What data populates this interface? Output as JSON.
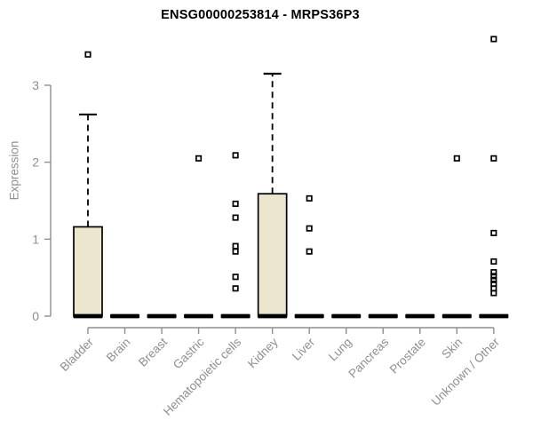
{
  "figure": {
    "title": "ENSG00000253814 - MRPS36P3",
    "ylabel": "Expression"
  },
  "chart_data": {
    "type": "boxplot",
    "title": "ENSG00000253814 - MRPS36P3",
    "xlabel": "",
    "ylabel": "Expression",
    "ylim": [
      0,
      3.7
    ],
    "yticks": [
      0,
      1,
      2,
      3
    ],
    "grid": false,
    "legend": "none",
    "categories": [
      "Bladder",
      "Brain",
      "Breast",
      "Gastric",
      "Hematopoietic cells",
      "Kidney",
      "Liver",
      "Lung",
      "Pancreas",
      "Prostate",
      "Skin",
      "Unknown / Other"
    ],
    "boxes": [
      {
        "category": "Bladder",
        "q1": 0,
        "median": 0,
        "q3": 1.16,
        "whisker_low": 0,
        "whisker_high": 2.62,
        "outliers": [
          3.4
        ]
      },
      {
        "category": "Brain",
        "q1": 0,
        "median": 0,
        "q3": 0,
        "whisker_low": 0,
        "whisker_high": 0,
        "outliers": []
      },
      {
        "category": "Breast",
        "q1": 0,
        "median": 0,
        "q3": 0,
        "whisker_low": 0,
        "whisker_high": 0,
        "outliers": []
      },
      {
        "category": "Gastric",
        "q1": 0,
        "median": 0,
        "q3": 0,
        "whisker_low": 0,
        "whisker_high": 0,
        "outliers": [
          2.05
        ]
      },
      {
        "category": "Hematopoietic cells",
        "q1": 0,
        "median": 0,
        "q3": 0,
        "whisker_low": 0,
        "whisker_high": 0,
        "outliers": [
          2.09,
          1.46,
          1.28,
          0.91,
          0.84,
          0.51,
          0.36
        ]
      },
      {
        "category": "Kidney",
        "q1": 0,
        "median": 0,
        "q3": 1.59,
        "whisker_low": 0,
        "whisker_high": 3.15,
        "outliers": []
      },
      {
        "category": "Liver",
        "q1": 0,
        "median": 0,
        "q3": 0,
        "whisker_low": 0,
        "whisker_high": 0,
        "outliers": [
          1.53,
          1.14,
          0.84
        ]
      },
      {
        "category": "Lung",
        "q1": 0,
        "median": 0,
        "q3": 0,
        "whisker_low": 0,
        "whisker_high": 0,
        "outliers": []
      },
      {
        "category": "Pancreas",
        "q1": 0,
        "median": 0,
        "q3": 0,
        "whisker_low": 0,
        "whisker_high": 0,
        "outliers": []
      },
      {
        "category": "Prostate",
        "q1": 0,
        "median": 0,
        "q3": 0,
        "whisker_low": 0,
        "whisker_high": 0,
        "outliers": []
      },
      {
        "category": "Skin",
        "q1": 0,
        "median": 0,
        "q3": 0,
        "whisker_low": 0,
        "whisker_high": 0,
        "outliers": [
          2.05
        ]
      },
      {
        "category": "Unknown / Other",
        "q1": 0,
        "median": 0,
        "q3": 0,
        "whisker_low": 0,
        "whisker_high": 0,
        "outliers": [
          3.6,
          2.05,
          1.08,
          0.71,
          0.57,
          0.52,
          0.47,
          0.42,
          0.36,
          0.3
        ]
      }
    ],
    "colors": {
      "box_fill": "#ebe6cd",
      "box_border": "#000000",
      "median": "#000000",
      "whisker": "#000000",
      "outlier": "#000000",
      "axis": "#8f8f8f",
      "tick_label": "#8f8f8f",
      "title": "#000000",
      "background": "#ffffff"
    }
  }
}
